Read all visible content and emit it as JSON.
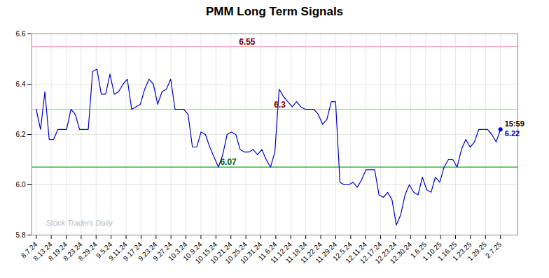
{
  "chart_data": {
    "type": "line",
    "title": "PMM Long Term Signals",
    "color": "#0000cc",
    "grid": true,
    "x": [
      0,
      1,
      2,
      3,
      4,
      5,
      6,
      7,
      8,
      9,
      10,
      11,
      12,
      13,
      14,
      15,
      16,
      17,
      18,
      19,
      20,
      21,
      22,
      23,
      24,
      25,
      26,
      27,
      28,
      29,
      30,
      31,
      32,
      33,
      34,
      35,
      36,
      37,
      38,
      39,
      40,
      41,
      42,
      43,
      44,
      45,
      46,
      47,
      48,
      49,
      50,
      51,
      52,
      53,
      54,
      55,
      56,
      57,
      58,
      59,
      60,
      61,
      62,
      63,
      64,
      65,
      66,
      67,
      68,
      69,
      70,
      71,
      72,
      73,
      74,
      75,
      76,
      77,
      78,
      79,
      80,
      81,
      82,
      83,
      84,
      85,
      86,
      87,
      88,
      89,
      90,
      91,
      92,
      93,
      94,
      95,
      96,
      97,
      98,
      99,
      100,
      101,
      102,
      103,
      104,
      105,
      106,
      107
    ],
    "values": [
      6.3,
      6.22,
      6.37,
      6.18,
      6.18,
      6.22,
      6.22,
      6.22,
      6.3,
      6.28,
      6.22,
      6.22,
      6.22,
      6.45,
      6.46,
      6.36,
      6.36,
      6.44,
      6.36,
      6.37,
      6.4,
      6.42,
      6.3,
      6.31,
      6.32,
      6.38,
      6.42,
      6.4,
      6.32,
      6.37,
      6.38,
      6.42,
      6.3,
      6.3,
      6.3,
      6.28,
      6.15,
      6.15,
      6.21,
      6.2,
      6.15,
      6.11,
      6.07,
      6.12,
      6.2,
      6.21,
      6.2,
      6.14,
      6.13,
      6.13,
      6.14,
      6.12,
      6.14,
      6.1,
      6.07,
      6.13,
      6.38,
      6.35,
      6.33,
      6.31,
      6.33,
      6.31,
      6.3,
      6.3,
      6.3,
      6.28,
      6.24,
      6.26,
      6.33,
      6.33,
      6.01,
      6.0,
      6.0,
      6.01,
      5.99,
      6.02,
      6.06,
      6.06,
      6.06,
      5.96,
      5.95,
      5.97,
      5.94,
      5.84,
      5.88,
      5.96,
      6.0,
      5.97,
      5.96,
      6.03,
      5.98,
      5.97,
      6.03,
      6.01,
      6.07,
      6.1,
      6.1,
      6.07,
      6.14,
      6.18,
      6.15,
      6.17,
      6.22,
      6.22,
      6.22,
      6.2,
      6.17,
      6.22
    ],
    "xlim": [
      -1,
      111
    ],
    "xticks": [
      {
        "value": 0,
        "label": "8.7.24"
      },
      {
        "value": 3.451613,
        "label": "8.13.24"
      },
      {
        "value": 6.903226,
        "label": "8.19.24"
      },
      {
        "value": 10.354839,
        "label": "8.23.24"
      },
      {
        "value": 13.806452,
        "label": "8.29.24"
      },
      {
        "value": 17.258065,
        "label": "9.5.24"
      },
      {
        "value": 20.709677,
        "label": "9.11.24"
      },
      {
        "value": 24.16129,
        "label": "9.17.24"
      },
      {
        "value": 27.612903,
        "label": "9.23.24"
      },
      {
        "value": 31.064516,
        "label": "9.27.24"
      },
      {
        "value": 34.516129,
        "label": "10.3.24"
      },
      {
        "value": 37.967742,
        "label": "10.9.24"
      },
      {
        "value": 41.419355,
        "label": "10.15.24"
      },
      {
        "value": 44.870968,
        "label": "10.21.24"
      },
      {
        "value": 48.322581,
        "label": "10.25.24"
      },
      {
        "value": 51.774194,
        "label": "10.31.24"
      },
      {
        "value": 55.225806,
        "label": "11.6.24"
      },
      {
        "value": 58.677419,
        "label": "11.12.24"
      },
      {
        "value": 62.129032,
        "label": "11.18.24"
      },
      {
        "value": 65.580645,
        "label": "11.22.24"
      },
      {
        "value": 69.032258,
        "label": "11.29.24"
      },
      {
        "value": 72.483871,
        "label": "12.5.24"
      },
      {
        "value": 75.935484,
        "label": "12.11.24"
      },
      {
        "value": 79.387097,
        "label": "12.17.24"
      },
      {
        "value": 82.83871,
        "label": "12.23.24"
      },
      {
        "value": 86.290323,
        "label": "12.30.24"
      },
      {
        "value": 89.741935,
        "label": "1.6.25"
      },
      {
        "value": 93.193548,
        "label": "1.10.25"
      },
      {
        "value": 96.645161,
        "label": "1.16.25"
      },
      {
        "value": 100.096774,
        "label": "1.23.25"
      },
      {
        "value": 103.548387,
        "label": "1.29.25"
      },
      {
        "value": 107,
        "label": "2.7.25"
      }
    ],
    "ylim": [
      5.8,
      6.6
    ],
    "yticks": [
      5.8,
      {
        "value": 6.0,
        "label": "6.0"
      },
      6.2,
      6.4,
      6.6
    ],
    "hlines": [
      {
        "value": 6.55,
        "label": "6.55",
        "color": "#ffaaaa",
        "label_color": "#880000"
      },
      {
        "value": 6.3,
        "label": "6.3",
        "color": "#ffaaaa",
        "label_color": "#880000"
      },
      {
        "value": 6.07,
        "label": "6.07",
        "color": "#33bb33",
        "label_color": "#006600"
      }
    ],
    "last_time": "15:59",
    "last_value": 6.22,
    "watermark": "Stock Traders Daily"
  }
}
